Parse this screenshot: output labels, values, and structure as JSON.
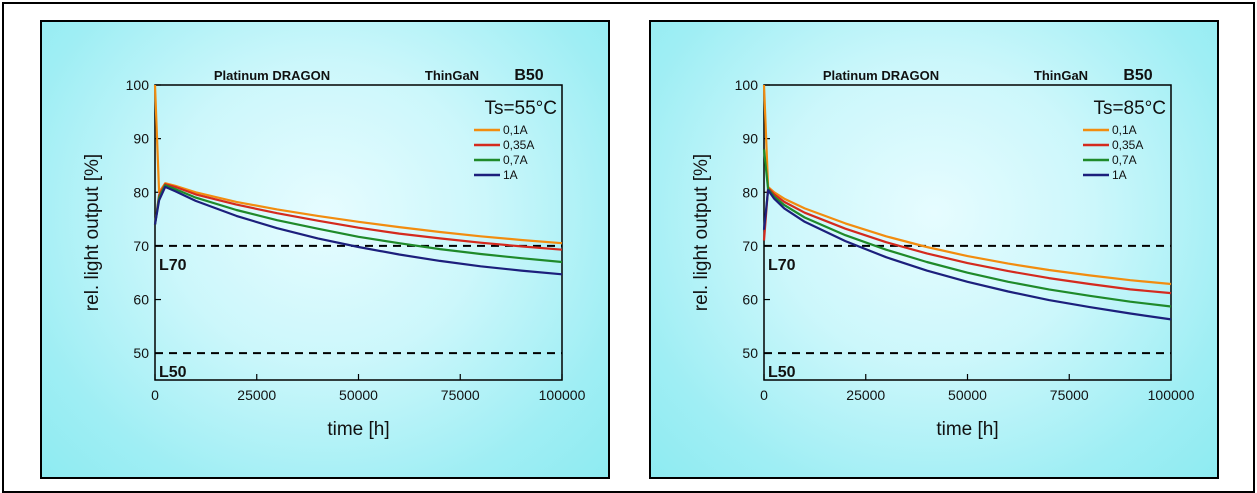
{
  "chart_data": [
    {
      "type": "line",
      "product": "Platinum DRAGON",
      "technology": "ThinGaN",
      "tag": "B50",
      "condition": "Ts=55°C",
      "xlabel": "time [h]",
      "ylabel": "rel. light output [%]",
      "xlim": [
        0,
        100000
      ],
      "ylim": [
        45,
        100
      ],
      "xticks": [
        "0",
        "25000",
        "50000",
        "75000",
        "100000"
      ],
      "yticks": [
        "50",
        "60",
        "70",
        "80",
        "90",
        "100"
      ],
      "grid": false,
      "legend_position": "top-right",
      "reference_lines": [
        {
          "label": "L70",
          "value": 70
        },
        {
          "label": "L50",
          "value": 50
        }
      ],
      "x": [
        0,
        1000,
        2500,
        5000,
        10000,
        20000,
        30000,
        40000,
        50000,
        60000,
        70000,
        80000,
        90000,
        100000
      ],
      "series": [
        {
          "name": "0,1A",
          "color": "#f28c0f",
          "values": [
            100,
            80.0,
            81.7,
            81.2,
            80.0,
            78.2,
            76.8,
            75.6,
            74.5,
            73.5,
            72.6,
            71.8,
            71.1,
            70.5
          ]
        },
        {
          "name": "0,35A",
          "color": "#d42a1e",
          "values": [
            74,
            79.5,
            81.5,
            81.0,
            79.6,
            77.7,
            76.1,
            74.7,
            73.4,
            72.3,
            71.4,
            70.6,
            69.9,
            69.3
          ]
        },
        {
          "name": "0,7A",
          "color": "#1f8a2a",
          "values": [
            74,
            79.0,
            81.3,
            80.6,
            79.0,
            76.7,
            74.8,
            73.2,
            71.7,
            70.5,
            69.4,
            68.5,
            67.7,
            67.0
          ]
        },
        {
          "name": "1A",
          "color": "#1c1f7c",
          "values": [
            74,
            78.5,
            81.0,
            80.2,
            78.4,
            75.6,
            73.3,
            71.4,
            69.8,
            68.4,
            67.2,
            66.2,
            65.4,
            64.7
          ]
        }
      ]
    },
    {
      "type": "line",
      "product": "Platinum DRAGON",
      "technology": "ThinGaN",
      "tag": "B50",
      "condition": "Ts=85°C",
      "xlabel": "time [h]",
      "ylabel": "rel. light output [%]",
      "xlim": [
        0,
        100000
      ],
      "ylim": [
        45,
        100
      ],
      "xticks": [
        "0",
        "25000",
        "50000",
        "75000",
        "100000"
      ],
      "yticks": [
        "50",
        "60",
        "70",
        "80",
        "90",
        "100"
      ],
      "grid": false,
      "legend_position": "top-right",
      "reference_lines": [
        {
          "label": "L70",
          "value": 70
        },
        {
          "label": "L50",
          "value": 50
        }
      ],
      "x": [
        0,
        1000,
        2500,
        5000,
        10000,
        20000,
        30000,
        40000,
        50000,
        60000,
        70000,
        80000,
        90000,
        100000
      ],
      "series": [
        {
          "name": "0,1A",
          "color": "#f28c0f",
          "values": [
            100,
            81.0,
            80.0,
            78.8,
            77.0,
            74.2,
            71.8,
            69.8,
            68.1,
            66.7,
            65.5,
            64.5,
            63.6,
            62.9
          ]
        },
        {
          "name": "0,35A",
          "color": "#d42a1e",
          "values": [
            71,
            80.8,
            79.6,
            78.2,
            76.2,
            73.2,
            70.7,
            68.6,
            66.8,
            65.3,
            64.0,
            62.9,
            61.9,
            61.2
          ]
        },
        {
          "name": "0,7A",
          "color": "#1f8a2a",
          "values": [
            88,
            80.6,
            79.2,
            77.6,
            75.3,
            72.0,
            69.3,
            67.0,
            65.0,
            63.3,
            61.9,
            60.7,
            59.6,
            58.7
          ]
        },
        {
          "name": "1A",
          "color": "#1c1f7c",
          "values": [
            73,
            80.4,
            78.8,
            77.0,
            74.5,
            70.9,
            67.9,
            65.4,
            63.3,
            61.5,
            59.9,
            58.6,
            57.4,
            56.3
          ]
        }
      ]
    }
  ]
}
